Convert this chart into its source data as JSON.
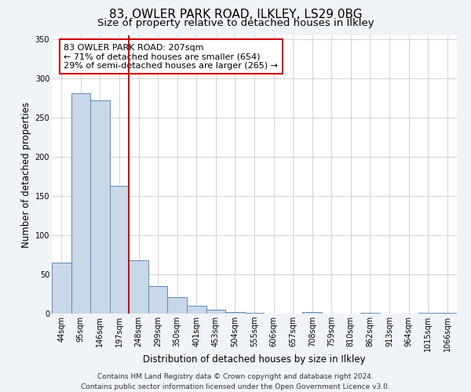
{
  "title": "83, OWLER PARK ROAD, ILKLEY, LS29 0BG",
  "subtitle": "Size of property relative to detached houses in Ilkley",
  "xlabel": "Distribution of detached houses by size in Ilkley",
  "ylabel": "Number of detached properties",
  "footer_line1": "Contains HM Land Registry data © Crown copyright and database right 2024.",
  "footer_line2": "Contains public sector information licensed under the Open Government Licence v3.0.",
  "bar_labels": [
    "44sqm",
    "95sqm",
    "146sqm",
    "197sqm",
    "248sqm",
    "299sqm",
    "350sqm",
    "401sqm",
    "453sqm",
    "504sqm",
    "555sqm",
    "606sqm",
    "657sqm",
    "708sqm",
    "759sqm",
    "810sqm",
    "862sqm",
    "913sqm",
    "964sqm",
    "1015sqm",
    "1066sqm"
  ],
  "bar_values": [
    65,
    281,
    272,
    163,
    68,
    35,
    21,
    10,
    5,
    2,
    1,
    0,
    0,
    2,
    0,
    0,
    1,
    0,
    0,
    1,
    1
  ],
  "bar_color": "#c8d8e8",
  "bar_edge_color": "#5b8db8",
  "vline_x": 3.5,
  "vline_color": "#cc0000",
  "annotation_text": "83 OWLER PARK ROAD: 207sqm\n← 71% of detached houses are smaller (654)\n29% of semi-detached houses are larger (265) →",
  "annotation_box_color": "#ffffff",
  "annotation_box_edge_color": "#cc0000",
  "ylim": [
    0,
    355
  ],
  "yticks": [
    0,
    50,
    100,
    150,
    200,
    250,
    300,
    350
  ],
  "grid_color": "#cccccc",
  "background_color": "#f0f4f8",
  "plot_background_color": "#ffffff",
  "title_fontsize": 11,
  "subtitle_fontsize": 9.5,
  "axis_label_fontsize": 8.5,
  "tick_fontsize": 7,
  "annotation_fontsize": 8,
  "footer_fontsize": 6.5
}
